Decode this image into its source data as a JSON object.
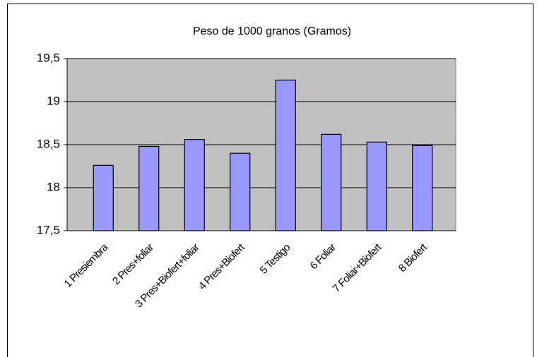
{
  "chart_data": {
    "type": "bar",
    "title": "Peso de 1000 granos (Gramos)",
    "categories": [
      "1 Presiembra",
      "2 Pres+foliar",
      "3 Pres+Biofert+foliar",
      "4 Pres+Biofert",
      "5 Testigo",
      "6 Foliar",
      "7 Foliar+Biofert",
      "8 Biofert"
    ],
    "values": [
      18.26,
      18.48,
      18.56,
      18.4,
      19.25,
      18.62,
      18.53,
      18.49
    ],
    "color": "#9999ff",
    "ylim": [
      17.5,
      19.5
    ],
    "yticks": [
      {
        "value": 17.5,
        "label": "17,5"
      },
      18,
      {
        "value": 18.5,
        "label": "18,5"
      },
      19,
      {
        "value": 19.5,
        "label": "19,5"
      }
    ],
    "grid": true
  }
}
